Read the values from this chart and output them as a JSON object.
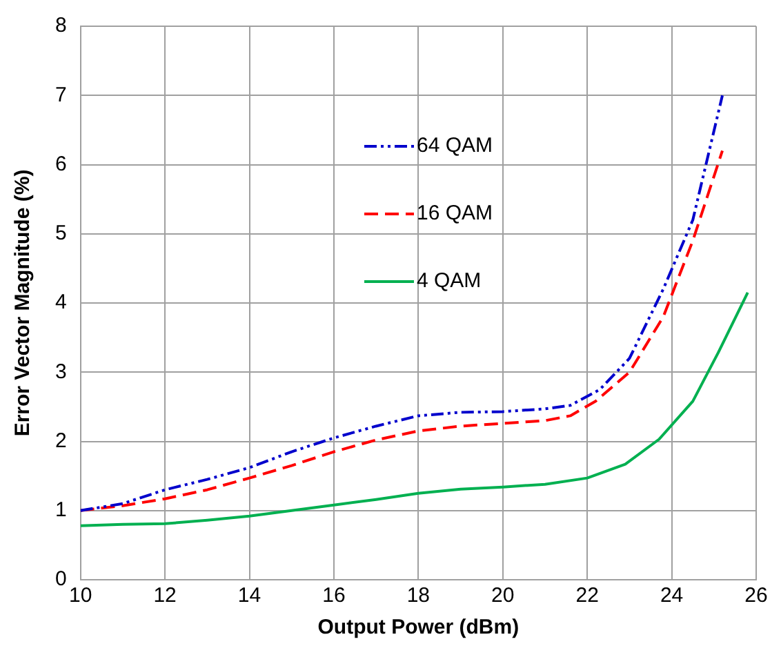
{
  "chart_data": {
    "type": "line",
    "xlabel": "Output Power (dBm)",
    "ylabel": "Error Vector Magnitude (%)",
    "xlim": [
      10,
      26
    ],
    "xticks": [
      10,
      12,
      14,
      16,
      18,
      20,
      22,
      24,
      26
    ],
    "ylim": [
      0,
      8
    ],
    "yticks": [
      0,
      1,
      2,
      3,
      4,
      5,
      6,
      7,
      8
    ],
    "grid": true,
    "legend": "top center",
    "marker": "none",
    "series": [
      {
        "name": "64 QAM",
        "color": "#0000cc",
        "line_style": "dashdot",
        "x": [
          10,
          11,
          12,
          13,
          14,
          15,
          16,
          17,
          18,
          19,
          20,
          21,
          21.6,
          22.3,
          23,
          23.8,
          24.5,
          25.2
        ],
        "values": [
          1.0,
          1.1,
          1.3,
          1.45,
          1.62,
          1.85,
          2.05,
          2.22,
          2.37,
          2.42,
          2.43,
          2.47,
          2.52,
          2.75,
          3.2,
          4.2,
          5.2,
          7.0
        ]
      },
      {
        "name": "16 QAM",
        "color": "#ff0000",
        "line_style": "dashed",
        "x": [
          10,
          11,
          12,
          13,
          14,
          15,
          16,
          17,
          18,
          19,
          20,
          21,
          21.6,
          22.2,
          23,
          23.8,
          24.5,
          25.2
        ],
        "values": [
          1.0,
          1.07,
          1.17,
          1.3,
          1.47,
          1.65,
          1.85,
          2.02,
          2.15,
          2.22,
          2.26,
          2.3,
          2.37,
          2.58,
          3.0,
          3.8,
          4.9,
          6.2
        ]
      },
      {
        "name": "4 QAM",
        "color": "#00b050",
        "line_style": "solid",
        "x": [
          10,
          11,
          12,
          13,
          14,
          15,
          16,
          17,
          18,
          19,
          20,
          21,
          22,
          22.9,
          23.7,
          24.5,
          25.1,
          25.8
        ],
        "values": [
          0.78,
          0.8,
          0.81,
          0.86,
          0.92,
          1.0,
          1.08,
          1.16,
          1.25,
          1.31,
          1.34,
          1.38,
          1.47,
          1.67,
          2.03,
          2.58,
          3.28,
          4.15
        ]
      }
    ]
  }
}
